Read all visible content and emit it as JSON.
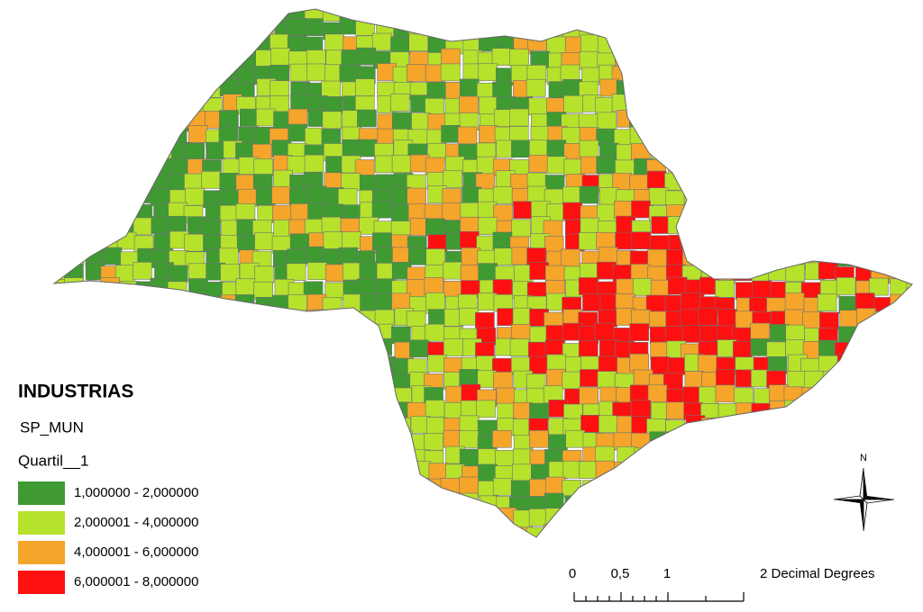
{
  "legend": {
    "title": "INDUSTRIAS",
    "layer": "SP_MUN",
    "field": "Quartil__1",
    "items": [
      {
        "label": "1,000000 - 2,000000",
        "color": "#3f9a32"
      },
      {
        "label": "2,000001 - 4,000000",
        "color": "#b6e22c"
      },
      {
        "label": "4,000001 - 6,000000",
        "color": "#f4a52a"
      },
      {
        "label": "6,000001 - 8,000000",
        "color": "#ff1010"
      }
    ]
  },
  "scale_bar": {
    "labels": [
      "0",
      "0,5",
      "1",
      "2 Decimal Degrees"
    ]
  },
  "north_arrow": {
    "label": "N"
  }
}
